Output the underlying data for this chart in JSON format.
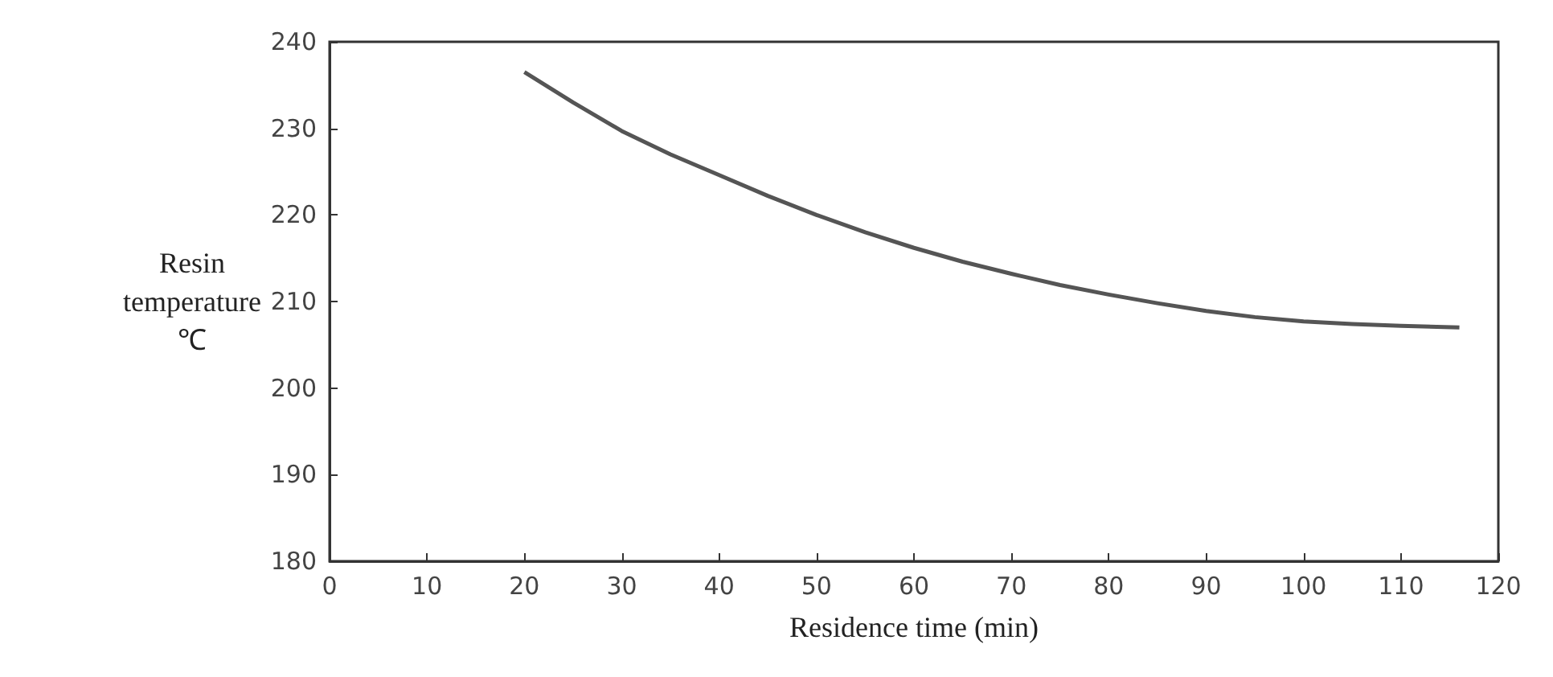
{
  "chart_data": {
    "type": "line",
    "xlabel": "Residence time (min)",
    "ylabel": "Resin temperature ℃",
    "x": [
      20,
      25,
      30,
      35,
      40,
      45,
      50,
      55,
      60,
      65,
      70,
      75,
      80,
      85,
      90,
      95,
      100,
      105,
      110,
      116
    ],
    "series": [
      {
        "color": "#555555",
        "values": [
          236.5,
          233,
          229.7,
          227,
          224.6,
          222.2,
          220,
          218,
          216.2,
          214.6,
          213.2,
          211.9,
          210.8,
          209.8,
          208.9,
          208.2,
          207.7,
          207.4,
          207.2,
          207
        ]
      }
    ],
    "xlim": [
      0,
      120
    ],
    "xticks": [
      0,
      10,
      20,
      30,
      40,
      50,
      60,
      70,
      80,
      90,
      100,
      110,
      120
    ],
    "ylim": [
      180,
      240
    ],
    "yticks": [
      180,
      190,
      200,
      210,
      220,
      230,
      240
    ],
    "grid": false,
    "marker": "none",
    "line_style": "solid"
  }
}
